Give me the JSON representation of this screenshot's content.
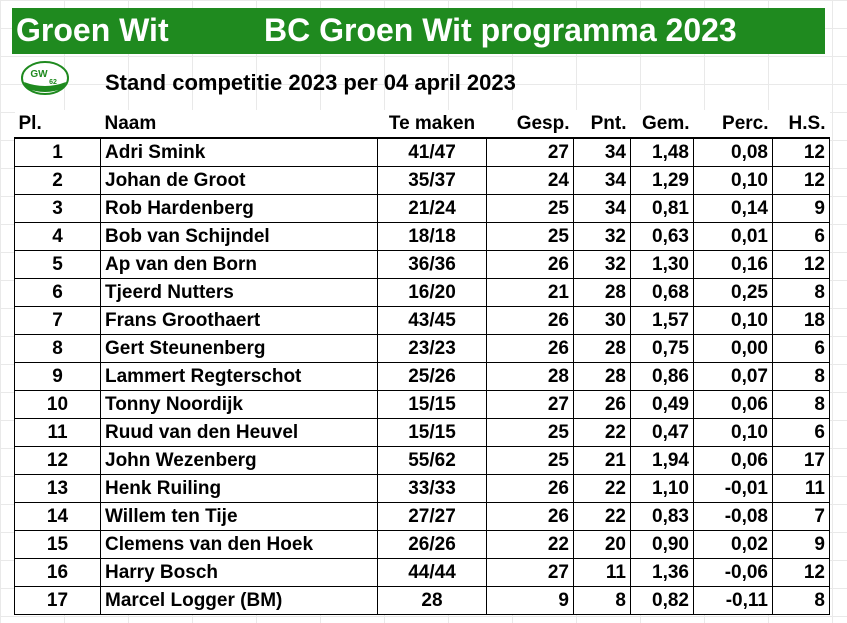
{
  "banner": {
    "left_text": "Groen Wit",
    "title": "BC Groen Wit programma 2023"
  },
  "logo": {
    "text": "GW",
    "number": "62",
    "colors": {
      "green": "#1f8a1f",
      "white": "#ffffff"
    }
  },
  "subtitle": "Stand competitie 2023 per 04 april 2023",
  "table": {
    "headers": {
      "pl": "Pl.",
      "naam": "Naam",
      "te_maken": "Te maken",
      "gesp": "Gesp.",
      "pnt": "Pnt.",
      "gem": "Gem.",
      "perc": "Perc.",
      "hs": "H.S."
    },
    "rows": [
      {
        "pl": "1",
        "naam": "Adri Smink",
        "te_maken": "41/47",
        "gesp": "27",
        "pnt": "34",
        "gem": "1,48",
        "perc": "0,08",
        "hs": "12"
      },
      {
        "pl": "2",
        "naam": "Johan de Groot",
        "te_maken": "35/37",
        "gesp": "24",
        "pnt": "34",
        "gem": "1,29",
        "perc": "0,10",
        "hs": "12"
      },
      {
        "pl": "3",
        "naam": "Rob Hardenberg",
        "te_maken": "21/24",
        "gesp": "25",
        "pnt": "34",
        "gem": "0,81",
        "perc": "0,14",
        "hs": "9"
      },
      {
        "pl": "4",
        "naam": "Bob van Schijndel",
        "te_maken": "18/18",
        "gesp": "25",
        "pnt": "32",
        "gem": "0,63",
        "perc": "0,01",
        "hs": "6"
      },
      {
        "pl": "5",
        "naam": "Ap van den Born",
        "te_maken": "36/36",
        "gesp": "26",
        "pnt": "32",
        "gem": "1,30",
        "perc": "0,16",
        "hs": "12"
      },
      {
        "pl": "6",
        "naam": "Tjeerd Nutters",
        "te_maken": "16/20",
        "gesp": "21",
        "pnt": "28",
        "gem": "0,68",
        "perc": "0,25",
        "hs": "8"
      },
      {
        "pl": "7",
        "naam": "Frans Groothaert",
        "te_maken": "43/45",
        "gesp": "26",
        "pnt": "30",
        "gem": "1,57",
        "perc": "0,10",
        "hs": "18"
      },
      {
        "pl": "8",
        "naam": "Gert Steunenberg",
        "te_maken": "23/23",
        "gesp": "26",
        "pnt": "28",
        "gem": "0,75",
        "perc": "0,00",
        "hs": "6"
      },
      {
        "pl": "9",
        "naam": "Lammert Regterschot",
        "te_maken": "25/26",
        "gesp": "28",
        "pnt": "28",
        "gem": "0,86",
        "perc": "0,07",
        "hs": "8"
      },
      {
        "pl": "10",
        "naam": "Tonny Noordijk",
        "te_maken": "15/15",
        "gesp": "27",
        "pnt": "26",
        "gem": "0,49",
        "perc": "0,06",
        "hs": "8"
      },
      {
        "pl": "11",
        "naam": "Ruud van den Heuvel",
        "te_maken": "15/15",
        "gesp": "25",
        "pnt": "22",
        "gem": "0,47",
        "perc": "0,10",
        "hs": "6"
      },
      {
        "pl": "12",
        "naam": "John Wezenberg",
        "te_maken": "55/62",
        "gesp": "25",
        "pnt": "21",
        "gem": "1,94",
        "perc": "0,06",
        "hs": "17"
      },
      {
        "pl": "13",
        "naam": "Henk Ruiling",
        "te_maken": "33/33",
        "gesp": "26",
        "pnt": "22",
        "gem": "1,10",
        "perc": "-0,01",
        "hs": "11"
      },
      {
        "pl": "14",
        "naam": "Willem ten Tije",
        "te_maken": "27/27",
        "gesp": "26",
        "pnt": "22",
        "gem": "0,83",
        "perc": "-0,08",
        "hs": "7"
      },
      {
        "pl": "15",
        "naam": "Clemens van den Hoek",
        "te_maken": "26/26",
        "gesp": "22",
        "pnt": "20",
        "gem": "0,90",
        "perc": "0,02",
        "hs": "9"
      },
      {
        "pl": "16",
        "naam": "Harry Bosch",
        "te_maken": "44/44",
        "gesp": "27",
        "pnt": "11",
        "gem": "1,36",
        "perc": "-0,06",
        "hs": "12"
      },
      {
        "pl": "17",
        "naam": "Marcel Logger (BM)",
        "te_maken": "28",
        "gesp": "9",
        "pnt": "8",
        "gem": "0,82",
        "perc": "-0,11",
        "hs": "8"
      }
    ]
  }
}
